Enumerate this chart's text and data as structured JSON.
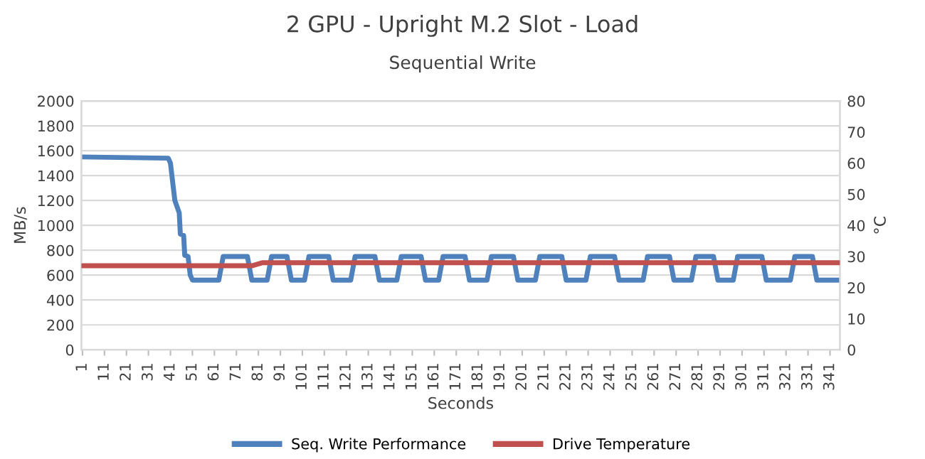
{
  "chart_data": {
    "type": "line",
    "title": "2 GPU - Upright M.2 Slot - Load",
    "subtitle": "Sequential Write",
    "xlabel": "Seconds",
    "ylabel": "MB/s",
    "y2label": "°C",
    "xlim": [
      0.5,
      345.5
    ],
    "xticks": [
      1,
      11,
      21,
      31,
      41,
      51,
      61,
      71,
      81,
      91,
      101,
      111,
      121,
      131,
      141,
      151,
      161,
      171,
      181,
      191,
      201,
      211,
      221,
      231,
      241,
      251,
      261,
      271,
      281,
      291,
      301,
      311,
      321,
      331,
      341
    ],
    "ylim": [
      0,
      2000
    ],
    "yticks": [
      0,
      200,
      400,
      600,
      800,
      1000,
      1200,
      1400,
      1600,
      1800,
      2000
    ],
    "y2lim": [
      0,
      80
    ],
    "y2ticks": [
      0,
      10,
      20,
      30,
      40,
      50,
      60,
      70,
      80
    ],
    "grid": "y",
    "legend": "bottom",
    "marker": "none",
    "line_style": "solid",
    "series": [
      {
        "name": "Seq. Write Performance",
        "color": "#4f81bd",
        "x": [
          1,
          40,
          41,
          43,
          44,
          45,
          45.5,
          47,
          47.5,
          49,
          50,
          51,
          63,
          65,
          76,
          78,
          85,
          87,
          94,
          96,
          102,
          104,
          113,
          115,
          123,
          125,
          134,
          136,
          144,
          146,
          155,
          157,
          163,
          165,
          175,
          177,
          185,
          187,
          197,
          199,
          207,
          209,
          219,
          221,
          230,
          232,
          243,
          245,
          256,
          258,
          268,
          270,
          278,
          280,
          288,
          290,
          297,
          299,
          310,
          312,
          323,
          325,
          333,
          335,
          345
        ],
        "values": [
          1550,
          1540,
          1500,
          1200,
          1150,
          1100,
          930,
          920,
          760,
          750,
          600,
          560,
          560,
          750,
          750,
          560,
          560,
          750,
          750,
          560,
          560,
          750,
          750,
          560,
          560,
          750,
          750,
          560,
          560,
          750,
          750,
          560,
          560,
          750,
          750,
          560,
          560,
          750,
          750,
          560,
          560,
          750,
          750,
          560,
          560,
          750,
          750,
          560,
          560,
          750,
          750,
          560,
          560,
          750,
          750,
          560,
          560,
          750,
          750,
          560,
          560,
          750,
          750,
          560,
          560
        ]
      },
      {
        "name": "Drive Temperature",
        "color": "#c0504d",
        "axis": "y2",
        "x": [
          1,
          78,
          83,
          345
        ],
        "values": [
          27,
          27,
          28,
          28
        ]
      }
    ]
  }
}
